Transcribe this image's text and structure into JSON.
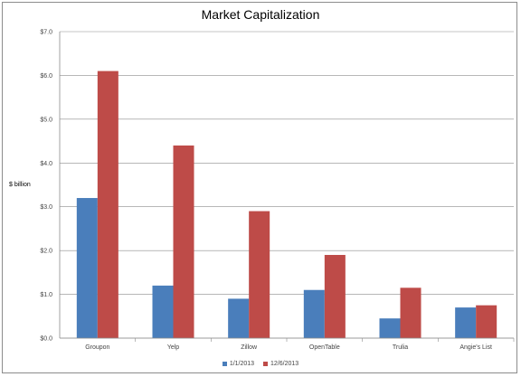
{
  "chart_data": {
    "type": "bar",
    "title": "Market Capitalization",
    "ylabel": "$ billion",
    "xlabel": "",
    "categories": [
      "Groupon",
      "Yelp",
      "Zillow",
      "OpenTable",
      "Trulia",
      "Angie's List"
    ],
    "series": [
      {
        "name": "1/1/2013",
        "values": [
          3.2,
          1.2,
          0.9,
          1.1,
          0.45,
          0.7
        ],
        "color": "#4a7ebb"
      },
      {
        "name": "12/6/2013",
        "values": [
          6.1,
          4.4,
          2.9,
          1.9,
          1.15,
          0.75
        ],
        "color": "#be4b48"
      }
    ],
    "ylim": [
      0,
      7
    ],
    "yticks": [
      0,
      1,
      2,
      3,
      4,
      5,
      6,
      7
    ],
    "ytick_labels": [
      "$0.0",
      "$1.0",
      "$2.0",
      "$3.0",
      "$4.0",
      "$5.0",
      "$6.0",
      "$7.0"
    ],
    "grid": true,
    "legend_position": "bottom"
  }
}
